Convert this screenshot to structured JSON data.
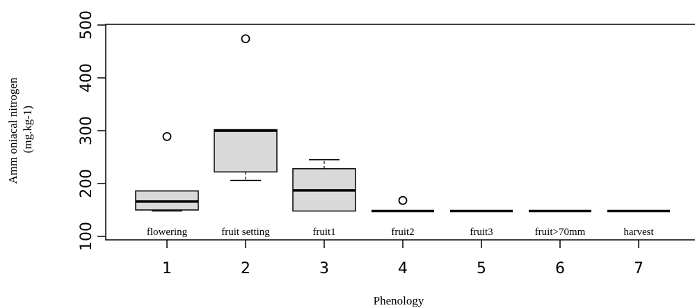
{
  "chart_data": {
    "type": "box",
    "xlabel": "Phenology",
    "ylabel_lines": [
      "Amm oniacal nitrogen",
      "(mg.kg-1)"
    ],
    "ylim": [
      100,
      500
    ],
    "yticks": [
      100,
      200,
      300,
      400,
      500
    ],
    "categories": [
      "1",
      "2",
      "3",
      "4",
      "5",
      "6",
      "7"
    ],
    "category_labels": [
      "flowering",
      "fruit setting",
      "fruit1",
      "fruit2",
      "fruit3",
      "fruit>70mm",
      "harvest"
    ],
    "box_fill": "#d9d9d9",
    "boxes": [
      {
        "category": "1",
        "whisker_low": 148,
        "q1": 150,
        "median": 166,
        "q3": 186,
        "whisker_high": 186,
        "outliers": [
          289
        ]
      },
      {
        "category": "2",
        "whisker_low": 206,
        "q1": 222,
        "median": 300,
        "q3": 302,
        "whisker_high": 302,
        "outliers": [
          474
        ]
      },
      {
        "category": "3",
        "whisker_low": 148,
        "q1": 148,
        "median": 187,
        "q3": 228,
        "whisker_high": 245,
        "outliers": []
      },
      {
        "category": "4",
        "whisker_low": 148,
        "q1": 148,
        "median": 148,
        "q3": 148,
        "whisker_high": 148,
        "outliers": [
          168
        ]
      },
      {
        "category": "5",
        "whisker_low": 148,
        "q1": 148,
        "median": 148,
        "q3": 148,
        "whisker_high": 148,
        "outliers": []
      },
      {
        "category": "6",
        "whisker_low": 148,
        "q1": 148,
        "median": 148,
        "q3": 148,
        "whisker_high": 148,
        "outliers": []
      },
      {
        "category": "7",
        "whisker_low": 148,
        "q1": 148,
        "median": 148,
        "q3": 148,
        "whisker_high": 148,
        "outliers": []
      }
    ]
  }
}
